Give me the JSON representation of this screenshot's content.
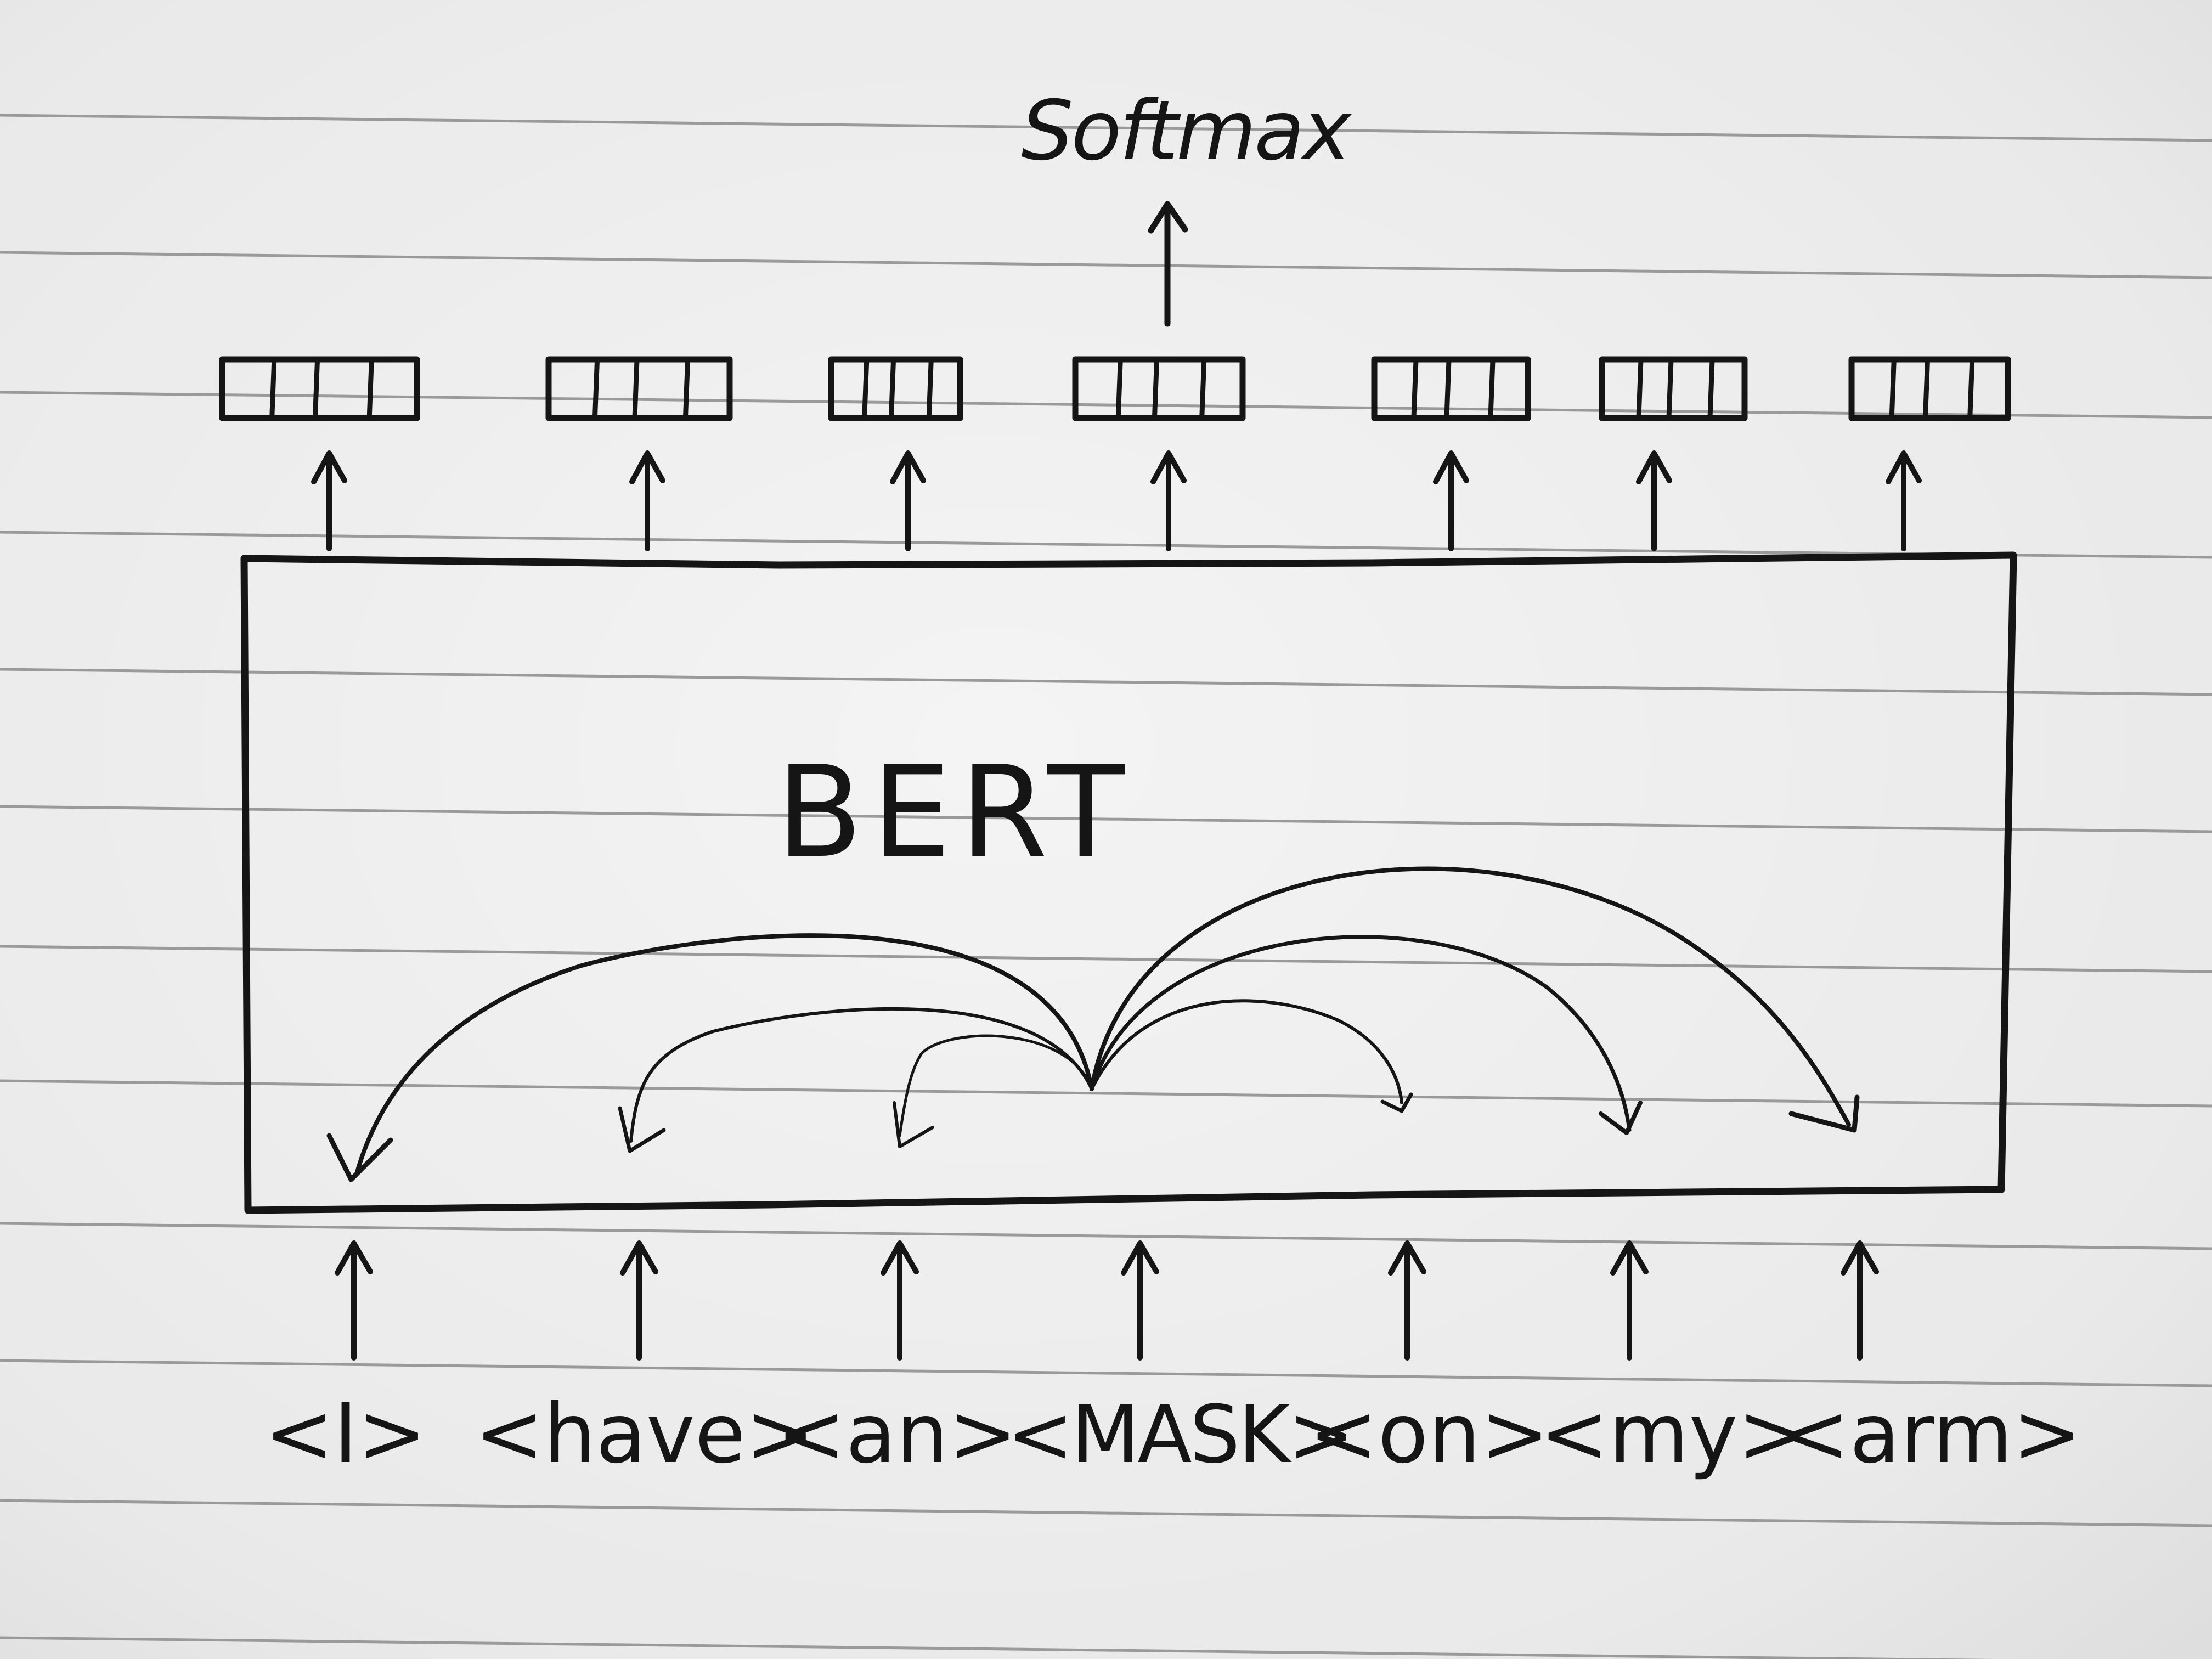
{
  "output": {
    "label": "Softmax"
  },
  "model": {
    "label": "BERT"
  },
  "tokens": [
    "<I>",
    "<have>",
    "<an>",
    "<MASK>",
    "<on>",
    "<my>",
    "<arm>"
  ],
  "masked_token_index": 3,
  "embedding_vectors": {
    "count": 7,
    "cells_per_vector": 4
  },
  "colors": {
    "ink": "#151515",
    "paper": "#ececec",
    "ruled_line": "#9a9a9a"
  }
}
